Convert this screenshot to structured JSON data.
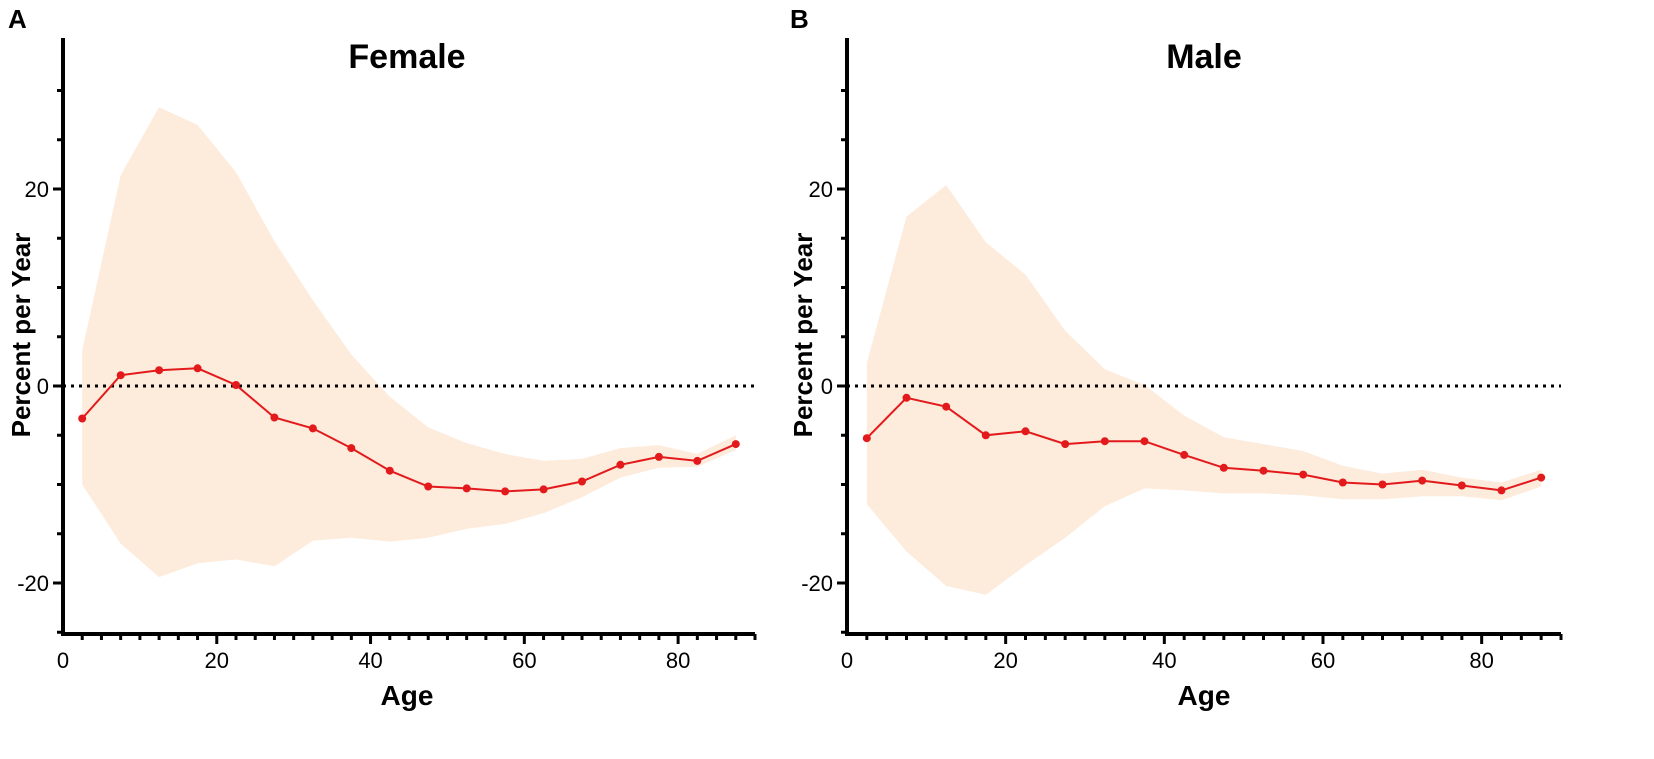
{
  "chart_data": [
    {
      "type": "line",
      "panel_label": "A",
      "title": "Female",
      "xlabel": "Age",
      "ylabel": "Percent per Year",
      "xlim": [
        0,
        90
      ],
      "ylim": [
        -25,
        35
      ],
      "x_ticks": [
        0,
        20,
        40,
        60,
        80
      ],
      "y_ticks": [
        -20,
        0,
        20
      ],
      "reference_line": 0,
      "colors": {
        "line": "#e31a1c",
        "band": "#fdebdb"
      },
      "series": [
        {
          "name": "Female",
          "x": [
            2.5,
            7.5,
            12.5,
            17.5,
            22.5,
            27.5,
            32.5,
            37.5,
            42.5,
            47.5,
            52.5,
            57.5,
            62.5,
            67.5,
            72.5,
            77.5,
            82.5,
            87.5
          ],
          "values": [
            -3.3,
            1.1,
            1.6,
            1.8,
            0.1,
            -3.2,
            -4.3,
            -6.3,
            -8.6,
            -10.2,
            -10.4,
            -10.7,
            -10.5,
            -9.7,
            -8.0,
            -7.2,
            -7.6,
            -5.9
          ],
          "lower": [
            -10,
            -16,
            -19.4,
            -18,
            -17.6,
            -18.3,
            -15.7,
            -15.4,
            -15.8,
            -15.4,
            -14.5,
            -14,
            -12.9,
            -11.3,
            -9.3,
            -8.3,
            -8.2,
            -6.5
          ],
          "upper": [
            3.6,
            21.4,
            28.3,
            26.5,
            21.7,
            14.7,
            8.7,
            3.2,
            -1.1,
            -4.2,
            -5.8,
            -6.9,
            -7.6,
            -7.4,
            -6.3,
            -6,
            -6.9,
            -5
          ]
        }
      ]
    },
    {
      "type": "line",
      "panel_label": "B",
      "title": "Male",
      "xlabel": "Age",
      "ylabel": "Percent per Year",
      "xlim": [
        0,
        90
      ],
      "ylim": [
        -25,
        35
      ],
      "x_ticks": [
        0,
        20,
        40,
        60,
        80
      ],
      "y_ticks": [
        -20,
        0,
        20
      ],
      "reference_line": 0,
      "colors": {
        "line": "#e31a1c",
        "band": "#fdebdb"
      },
      "series": [
        {
          "name": "Male",
          "x": [
            2.5,
            7.5,
            12.5,
            17.5,
            22.5,
            27.5,
            32.5,
            37.5,
            42.5,
            47.5,
            52.5,
            57.5,
            62.5,
            67.5,
            72.5,
            77.5,
            82.5,
            87.5
          ],
          "values": [
            -5.3,
            -1.2,
            -2.1,
            -5.0,
            -4.6,
            -5.9,
            -5.6,
            -5.6,
            -7.0,
            -8.3,
            -8.6,
            -9.0,
            -9.8,
            -10.0,
            -9.6,
            -10.1,
            -10.6,
            -9.3
          ],
          "lower": [
            -12,
            -16.8,
            -20.3,
            -21.2,
            -18.2,
            -15.4,
            -12.2,
            -10.4,
            -10.6,
            -10.9,
            -10.9,
            -11.1,
            -11.5,
            -11.5,
            -11.2,
            -11.2,
            -11.6,
            -10.2
          ],
          "upper": [
            2.3,
            17.2,
            20.4,
            14.6,
            11.3,
            5.6,
            1.7,
            0.1,
            -3,
            -5.2,
            -5.9,
            -6.6,
            -8.1,
            -8.9,
            -8.5,
            -9.3,
            -9.8,
            -8.5
          ]
        }
      ]
    }
  ]
}
